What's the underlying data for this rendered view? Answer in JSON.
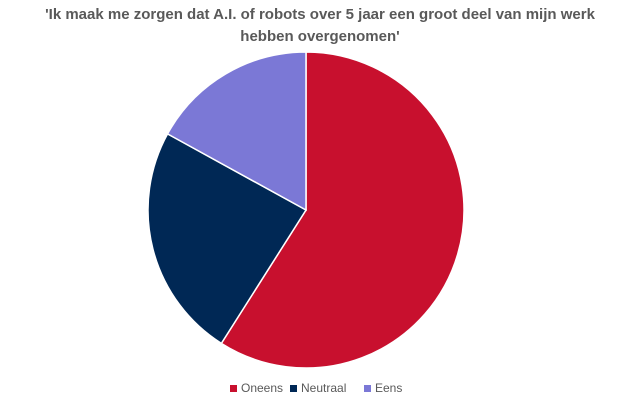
{
  "chart_data": {
    "type": "pie",
    "title": "'Ik maak me zorgen dat A.I. of robots over 5 jaar een groot deel van mijn werk hebben overgenomen'",
    "categories": [
      "Oneens",
      "Neutraal",
      "Eens"
    ],
    "values": [
      59,
      24,
      17
    ],
    "colors": [
      "#c8102e",
      "#002855",
      "#7b78d6"
    ],
    "legend": "bottom"
  }
}
